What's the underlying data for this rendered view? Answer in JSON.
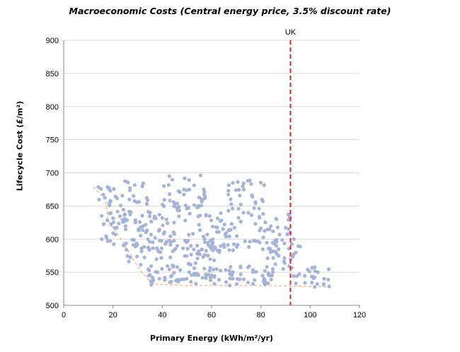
{
  "chart_data": {
    "type": "scatter",
    "title": "Macroeconomic Costs (Central energy price, 3.5% discount rate)",
    "xlabel": "Primary Energy (kWh/m²/yr)",
    "ylabel": "Lifecycle Cost (£/m²)",
    "xlim": [
      0,
      120
    ],
    "ylim": [
      500,
      900
    ],
    "x_ticks": [
      0,
      20,
      40,
      60,
      80,
      100,
      120
    ],
    "y_ticks": [
      500,
      550,
      600,
      650,
      700,
      750,
      800,
      850,
      900
    ],
    "grid": "horizontal",
    "colors": {
      "points": "#A5B3D6",
      "frontier": "#F4B183",
      "reference": "#E0202A",
      "grid": "#D9D9D9",
      "axis": "#868686"
    },
    "reference_line": {
      "x": 92,
      "label": "UK"
    },
    "frontier": [
      [
        12,
        679
      ],
      [
        17,
        660
      ],
      [
        18,
        628
      ],
      [
        22,
        607
      ],
      [
        26,
        583
      ],
      [
        29,
        565
      ],
      [
        31,
        553
      ],
      [
        34,
        540
      ],
      [
        37,
        532
      ],
      [
        50,
        530
      ],
      [
        80,
        530
      ],
      [
        95,
        529
      ],
      [
        108,
        528
      ]
    ],
    "clusters": [
      {
        "x": [
          14,
          35
        ],
        "y": [
          640,
          690
        ],
        "n": 40
      },
      {
        "x": [
          15,
          38
        ],
        "y": [
          590,
          640
        ],
        "n": 55
      },
      {
        "x": [
          25,
          45
        ],
        "y": [
          560,
          600
        ],
        "n": 30
      },
      {
        "x": [
          34,
          60
        ],
        "y": [
          530,
          560
        ],
        "n": 55
      },
      {
        "x": [
          35,
          65
        ],
        "y": [
          580,
          640
        ],
        "n": 70
      },
      {
        "x": [
          40,
          58
        ],
        "y": [
          640,
          698
        ],
        "n": 45
      },
      {
        "x": [
          48,
          62
        ],
        "y": [
          560,
          600
        ],
        "n": 30
      },
      {
        "x": [
          60,
          85
        ],
        "y": [
          530,
          560
        ],
        "n": 45
      },
      {
        "x": [
          62,
          92
        ],
        "y": [
          580,
          640
        ],
        "n": 70
      },
      {
        "x": [
          66,
          82
        ],
        "y": [
          640,
          690
        ],
        "n": 30
      },
      {
        "x": [
          82,
          96
        ],
        "y": [
          540,
          600
        ],
        "n": 30
      },
      {
        "x": [
          90,
          108
        ],
        "y": [
          527,
          560
        ],
        "n": 25
      }
    ]
  }
}
